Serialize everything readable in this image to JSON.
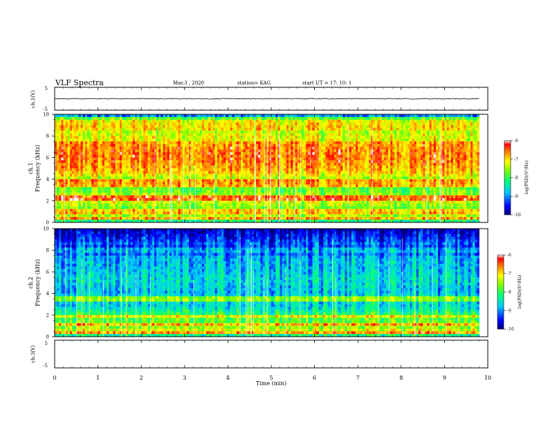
{
  "header": {
    "title": "VLF Spectra",
    "date": "Mar.3  , 2020",
    "station": "station= KAG",
    "start": "start  UT =   17: 10: 1"
  },
  "chart_data": [
    {
      "type": "line",
      "panel": "ch.1 waveform",
      "ylabel": "ch.1(V)",
      "yticks": [
        "5",
        "-5"
      ],
      "ylim": [
        -5,
        5
      ],
      "xlim": [
        0,
        10
      ],
      "x": [
        0,
        9.8
      ],
      "y": [
        0,
        0
      ]
    },
    {
      "type": "heatmap",
      "panel": "ch.1 spectrogram",
      "ylabel": "ch.1\nFrequency (kHz)",
      "yticks": [
        "0",
        "2",
        "4",
        "6",
        "8",
        "10"
      ],
      "ylim": [
        0,
        10
      ],
      "xlim": [
        0,
        10
      ],
      "data_end_min": 9.8,
      "colorbar": {
        "label": "log(PSD)(V²/Hz)",
        "ticks": [
          "-6",
          "-7",
          "-8",
          "-9",
          "-10"
        ],
        "range": [
          -10,
          -6
        ]
      },
      "freq_profile_kHz": [
        0,
        0.5,
        1,
        1.5,
        2,
        2.5,
        3,
        3.5,
        4,
        4.5,
        5,
        5.5,
        6,
        6.5,
        7,
        7.5,
        8,
        8.5,
        9,
        9.5,
        10
      ],
      "typical_log_psd": [
        -8.5,
        -7.3,
        -7.8,
        -7.6,
        -7.2,
        -7.4,
        -7.8,
        -7.6,
        -7.5,
        -7.0,
        -6.8,
        -6.7,
        -6.6,
        -6.6,
        -6.7,
        -6.8,
        -8.4,
        -7.0,
        -7.0,
        -7.2,
        -9.5
      ],
      "line_features_kHz": [
        0.3,
        1.0,
        2.1,
        2.3,
        3.5,
        3.8,
        8.0
      ]
    },
    {
      "type": "heatmap",
      "panel": "ch.2 spectrogram",
      "ylabel": "ch.2\nFrequency (kHz)",
      "yticks": [
        "0",
        "2",
        "4",
        "6",
        "8",
        "10"
      ],
      "ylim": [
        0,
        10
      ],
      "xlim": [
        0,
        10
      ],
      "data_end_min": 9.8,
      "colorbar": {
        "label": "log(PSD)(V²/Hz)",
        "ticks": [
          "-6",
          "-7",
          "-8",
          "-9",
          "-10"
        ],
        "range": [
          -10,
          -6
        ]
      },
      "freq_profile_kHz": [
        0,
        0.5,
        1,
        1.5,
        2,
        2.5,
        3,
        3.5,
        4,
        4.5,
        5,
        5.5,
        6,
        6.5,
        7,
        7.5,
        8,
        8.5,
        9,
        9.5,
        10
      ],
      "typical_log_psd": [
        -8.6,
        -7.2,
        -7.6,
        -7.8,
        -8.0,
        -8.4,
        -8.7,
        -8.3,
        -8.8,
        -8.7,
        -8.6,
        -8.6,
        -8.7,
        -8.8,
        -8.8,
        -8.9,
        -9.9,
        -9.1,
        -9.4,
        -9.6,
        -9.9
      ],
      "line_features_kHz": [
        0.4,
        1.2,
        1.9,
        3.3,
        3.6,
        8.0
      ]
    },
    {
      "type": "line",
      "panel": "ch.3 waveform",
      "ylabel": "ch.3(V)",
      "yticks": [
        "5",
        "-5"
      ],
      "ylim": [
        -5,
        5
      ],
      "xlim": [
        0,
        10
      ]
    }
  ],
  "xaxis": {
    "label": "Time (min)",
    "ticks": [
      "0",
      "1",
      "2",
      "3",
      "4",
      "5",
      "6",
      "7",
      "8",
      "9",
      "10"
    ]
  }
}
